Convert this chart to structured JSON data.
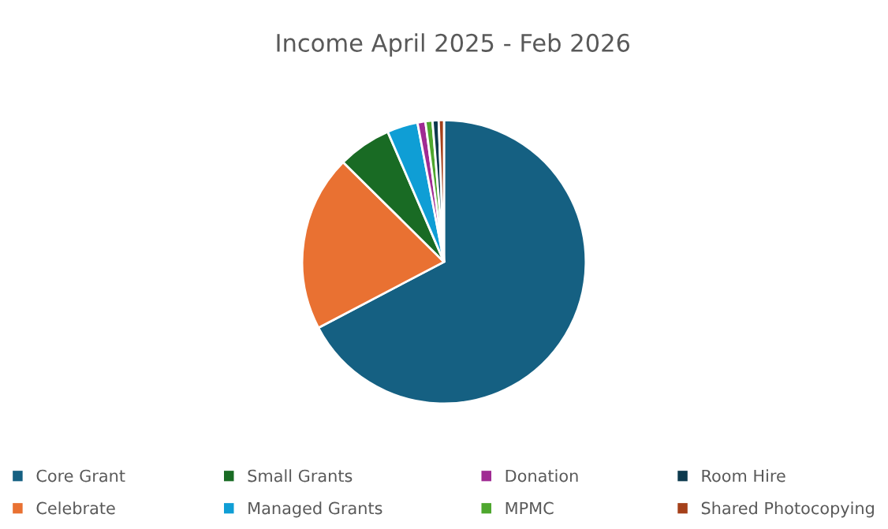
{
  "chart_data": {
    "type": "pie",
    "title": "Income April 2025 - Feb 2026",
    "categories": [
      "Core Grant",
      "Celebrate",
      "Small Grants",
      "Managed Grants",
      "Donation",
      "MPMC",
      "Room Hire",
      "Shared Photocopying"
    ],
    "values": [
      67.3,
      20.1,
      6.1,
      3.5,
      0.9,
      0.8,
      0.7,
      0.6
    ],
    "colors": [
      "#156082",
      "#e97132",
      "#196b24",
      "#0f9ed5",
      "#a02b93",
      "#4ea72e",
      "#0d3a4e",
      "#a5401a"
    ],
    "legend": "bottom"
  }
}
